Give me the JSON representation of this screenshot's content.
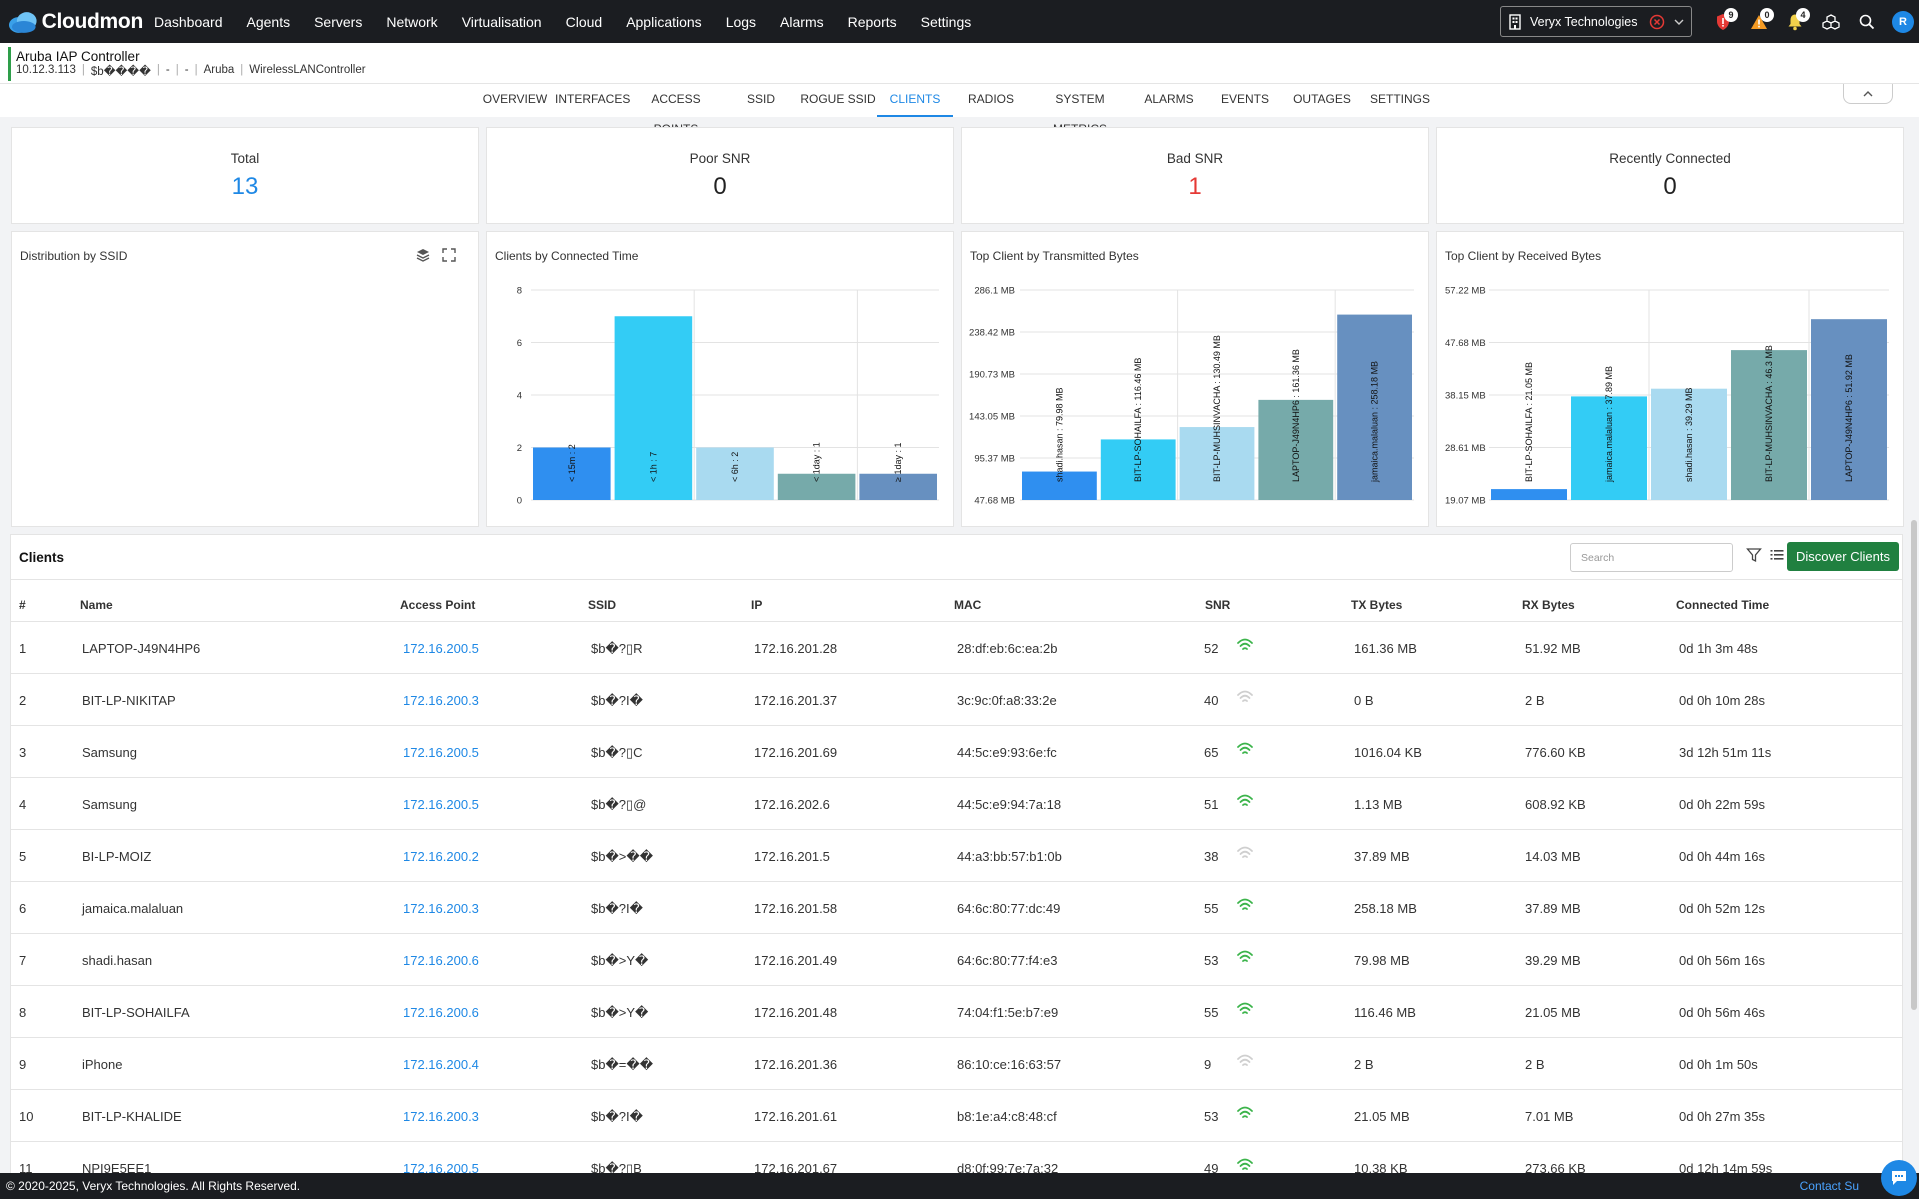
{
  "app": {
    "brand": "Cloudmon",
    "nav": [
      "Dashboard",
      "Agents",
      "Servers",
      "Network",
      "Virtualisation",
      "Cloud",
      "Applications",
      "Logs",
      "Alarms",
      "Reports",
      "Settings"
    ],
    "org": "Veryx Technologies",
    "alerts_critical": "9",
    "alerts_warning": "0",
    "notifications": "4",
    "user_initial": "R"
  },
  "device": {
    "title": "Aruba IAP Controller",
    "ip": "10.12.3.113",
    "location": "$b����",
    "field1": "-",
    "field2": "-",
    "vendor": "Aruba",
    "type": "WirelessLANController"
  },
  "tabs": [
    "OVERVIEW",
    "INTERFACES",
    "ACCESS POINTS",
    "SSID",
    "ROGUE SSID",
    "CLIENTS",
    "RADIOS",
    "SYSTEM METRICS",
    "ALARMS",
    "EVENTS",
    "OUTAGES",
    "SETTINGS"
  ],
  "active_tab": "CLIENTS",
  "stats": [
    {
      "label": "Total",
      "value": "13",
      "color": "#1e88e5"
    },
    {
      "label": "Poor SNR",
      "value": "0",
      "color": "#222222"
    },
    {
      "label": "Bad SNR",
      "value": "1",
      "color": "#e53935"
    },
    {
      "label": "Recently Connected",
      "value": "0",
      "color": "#222222"
    }
  ],
  "ssid_panel": {
    "title": "Distribution by SSID"
  },
  "chart_data": [
    {
      "type": "bar",
      "title": "Clients by Connected Time",
      "categories": [
        "< 15m",
        "< 1h",
        "< 6h",
        "< 1day",
        "≥ 1day"
      ],
      "values": [
        2,
        7,
        2,
        1,
        1
      ],
      "bar_labels": [
        "< 15m : 2",
        "< 1h : 7",
        "< 6h : 2",
        "< 1day : 1",
        "≥ 1day : 1"
      ],
      "yticks": [
        "0",
        "2",
        "4",
        "6",
        "8"
      ],
      "ylim": [
        0,
        8
      ],
      "colors": [
        "#2f8ff0",
        "#33ccf5",
        "#a9daf0",
        "#76aaaa",
        "#6790c0"
      ],
      "grid": true
    },
    {
      "type": "bar",
      "title": "Top Client by Transmitted Bytes",
      "categories": [
        "shadi.hasan",
        "BIT-LP-SOHAILFA",
        "BIT-LP-MUHSINVACHA",
        "LAPTOP-J49N4HP6",
        "jamaica.malaluan"
      ],
      "values": [
        79.98,
        116.46,
        130.49,
        161.36,
        258.18
      ],
      "bar_labels": [
        "shadi.hasan : 79.98 MB",
        "BIT-LP-SOHAILFA : 116.46 MB",
        "BIT-LP-MUHSINVACHA : 130.49 MB",
        "LAPTOP-J49N4HP6 : 161.36 MB",
        "jamaica.malaluan : 258.18 MB"
      ],
      "yticks": [
        "47.68 MB",
        "95.37 MB",
        "143.05 MB",
        "190.73 MB",
        "238.42 MB",
        "286.1 MB"
      ],
      "ylim": [
        47.68,
        286.1
      ],
      "colors": [
        "#2f8ff0",
        "#33ccf5",
        "#a9daf0",
        "#76aaaa",
        "#6790c0"
      ],
      "grid": true
    },
    {
      "type": "bar",
      "title": "Top Client by Received Bytes",
      "categories": [
        "BIT-LP-SOHAILFA",
        "jamaica.malaluan",
        "shadi.hasan",
        "BIT-LP-MUHSINVACHA",
        "LAPTOP-J49N4HP6"
      ],
      "values": [
        21.05,
        37.89,
        39.29,
        46.3,
        51.92
      ],
      "bar_labels": [
        "BIT-LP-SOHAILFA : 21.05 MB",
        "jamaica.malaluan : 37.89 MB",
        "shadi.hasan : 39.29 MB",
        "BIT-LP-MUHSINVACHA : 46.3 MB",
        "LAPTOP-J49N4HP6 : 51.92 MB"
      ],
      "yticks": [
        "19.07 MB",
        "28.61 MB",
        "38.15 MB",
        "47.68 MB",
        "57.22 MB"
      ],
      "ylim": [
        19.07,
        57.22
      ],
      "colors": [
        "#2f8ff0",
        "#33ccf5",
        "#a9daf0",
        "#76aaaa",
        "#6790c0"
      ],
      "grid": true
    }
  ],
  "clients": {
    "title": "Clients",
    "search_placeholder": "Search",
    "discover_label": "Discover Clients",
    "columns": [
      "#",
      "Name",
      "Access Point",
      "SSID",
      "IP",
      "MAC",
      "SNR",
      "TX Bytes",
      "RX Bytes",
      "Connected Time"
    ],
    "rows": [
      {
        "n": "1",
        "name": "LAPTOP-J49N4HP6",
        "ap": "172.16.200.5",
        "ssid": "$b�?▯R",
        "ip": "172.16.201.28",
        "mac": "28:df:eb:6c:ea:2b",
        "snr": "52",
        "signal": "good",
        "tx": "161.36 MB",
        "rx": "51.92 MB",
        "time": "0d 1h 3m 48s"
      },
      {
        "n": "2",
        "name": "BIT-LP-NIKITAP",
        "ap": "172.16.200.3",
        "ssid": "$b�?I�",
        "ip": "172.16.201.37",
        "mac": "3c:9c:0f:a8:33:2e",
        "snr": "40",
        "signal": "fair",
        "tx": "0 B",
        "rx": "2 B",
        "time": "0d 0h 10m 28s"
      },
      {
        "n": "3",
        "name": "Samsung",
        "ap": "172.16.200.5",
        "ssid": "$b�?▯C",
        "ip": "172.16.201.69",
        "mac": "44:5c:e9:93:6e:fc",
        "snr": "65",
        "signal": "good",
        "tx": "1016.04 KB",
        "rx": "776.60 KB",
        "time": "3d 12h 51m 11s"
      },
      {
        "n": "4",
        "name": "Samsung",
        "ap": "172.16.200.5",
        "ssid": "$b�?▯@",
        "ip": "172.16.202.6",
        "mac": "44:5c:e9:94:7a:18",
        "snr": "51",
        "signal": "good",
        "tx": "1.13 MB",
        "rx": "608.92 KB",
        "time": "0d 0h 22m 59s"
      },
      {
        "n": "5",
        "name": "BI-LP-MOIZ",
        "ap": "172.16.200.2",
        "ssid": "$b�>��",
        "ip": "172.16.201.5",
        "mac": "44:a3:bb:57:b1:0b",
        "snr": "38",
        "signal": "fair",
        "tx": "37.89 MB",
        "rx": "14.03 MB",
        "time": "0d 0h 44m 16s"
      },
      {
        "n": "6",
        "name": "jamaica.malaluan",
        "ap": "172.16.200.3",
        "ssid": "$b�?I�",
        "ip": "172.16.201.58",
        "mac": "64:6c:80:77:dc:49",
        "snr": "55",
        "signal": "good",
        "tx": "258.18 MB",
        "rx": "37.89 MB",
        "time": "0d 0h 52m 12s"
      },
      {
        "n": "7",
        "name": "shadi.hasan",
        "ap": "172.16.200.6",
        "ssid": "$b�>Y�",
        "ip": "172.16.201.49",
        "mac": "64:6c:80:77:f4:e3",
        "snr": "53",
        "signal": "good",
        "tx": "79.98 MB",
        "rx": "39.29 MB",
        "time": "0d 0h 56m 16s"
      },
      {
        "n": "8",
        "name": "BIT-LP-SOHAILFA",
        "ap": "172.16.200.6",
        "ssid": "$b�>Y�",
        "ip": "172.16.201.48",
        "mac": "74:04:f1:5e:b7:e9",
        "snr": "55",
        "signal": "good",
        "tx": "116.46 MB",
        "rx": "21.05 MB",
        "time": "0d 0h 56m 46s"
      },
      {
        "n": "9",
        "name": "iPhone",
        "ap": "172.16.200.4",
        "ssid": "$b�=��",
        "ip": "172.16.201.36",
        "mac": "86:10:ce:16:63:57",
        "snr": "9",
        "signal": "bad",
        "tx": "2 B",
        "rx": "2 B",
        "time": "0d 0h 1m 50s"
      },
      {
        "n": "10",
        "name": "BIT-LP-KHALIDE",
        "ap": "172.16.200.3",
        "ssid": "$b�?I�",
        "ip": "172.16.201.61",
        "mac": "b8:1e:a4:c8:48:cf",
        "snr": "53",
        "signal": "good",
        "tx": "21.05 MB",
        "rx": "7.01 MB",
        "time": "0d 0h 27m 35s"
      },
      {
        "n": "11",
        "name": "NPI9E5EE1",
        "ap": "172.16.200.5",
        "ssid": "$b�?▯B",
        "ip": "172.16.201.67",
        "mac": "d8:0f:99:7e:7a:32",
        "snr": "49",
        "signal": "good",
        "tx": "10.38 KB",
        "rx": "273.66 KB",
        "time": "0d 12h 14m 59s"
      }
    ]
  },
  "footer": {
    "copyright": "© 2020-2025, Veryx Technologies. All Rights Reserved.",
    "contact": "Contact Su"
  }
}
